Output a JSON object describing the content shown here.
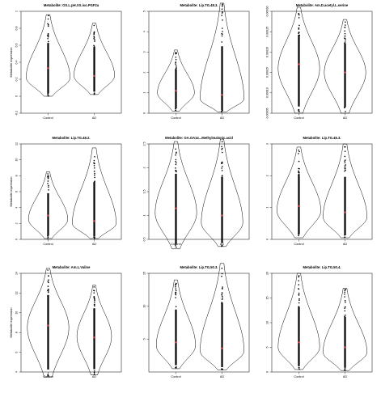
{
  "chart_data": [
    {
      "type": "violin",
      "title": "Metabolite: OS.L.pH.XX.iso.PGF2a",
      "ylabel": "Metabolite expression",
      "categories": [
        "Control",
        "AD"
      ],
      "ylim": [
        -0.2,
        1.0
      ],
      "yticks": [
        -0.2,
        0,
        0.2,
        0.4,
        0.6,
        0.8,
        1.0
      ],
      "summary": [
        {
          "min": 0.0,
          "max": 0.96,
          "mode": 0.22,
          "width": 0.95,
          "mean": 0.33
        },
        {
          "min": 0.02,
          "max": 0.86,
          "mode": 0.24,
          "width": 0.88,
          "mean": 0.24
        }
      ]
    },
    {
      "type": "violin",
      "title": "Metabolite: Lip.TG.48.3.",
      "ylabel": "",
      "categories": [
        "Control",
        "AD"
      ],
      "ylim": [
        0,
        5
      ],
      "yticks": [
        0,
        1,
        2,
        3,
        4,
        5
      ],
      "summary": [
        {
          "min": 0.1,
          "max": 3.1,
          "mode": 1.0,
          "width": 0.8,
          "mean": 1.1
        },
        {
          "min": 0.05,
          "max": 5.4,
          "mode": 0.7,
          "width": 0.95,
          "mean": 0.9
        }
      ]
    },
    {
      "type": "violin",
      "title": "Metabolite: Am.D.acetyl.L.serine",
      "ylabel": "",
      "categories": [
        "Control",
        "AD"
      ],
      "ylim": [
        5e-05,
        0.0003
      ],
      "yticks": [
        5e-05,
        0.0001,
        0.00015,
        0.0002,
        0.00025,
        0.0003
      ],
      "summary": [
        {
          "min": 5e-05,
          "max": 0.00031,
          "mode": 0.00016,
          "width": 0.9,
          "mean": 0.00017
        },
        {
          "min": 5e-05,
          "max": 0.00028,
          "mode": 0.00015,
          "width": 0.9,
          "mean": 0.00015
        }
      ]
    },
    {
      "type": "violin",
      "title": "Metabolite: Lip.TG.48.2.",
      "ylabel": "Metabolite expression",
      "categories": [
        "Control",
        "AD"
      ],
      "ylim": [
        0,
        12
      ],
      "yticks": [
        0,
        2,
        4,
        6,
        8,
        10,
        12
      ],
      "summary": [
        {
          "min": 0.1,
          "max": 8.5,
          "mode": 2.5,
          "width": 0.85,
          "mean": 3.0
        },
        {
          "min": 0.1,
          "max": 11.5,
          "mode": 2.0,
          "width": 0.95,
          "mean": 2.3
        }
      ]
    },
    {
      "type": "violin",
      "title": "Metabolite: OA.OA14...Methylmalonic.acid",
      "ylabel": "",
      "categories": [
        "Control",
        "AD"
      ],
      "ylim": [
        0.5,
        2.5
      ],
      "yticks": [
        0.5,
        1.0,
        1.5,
        2.0,
        2.5
      ],
      "summary": [
        {
          "min": 0.3,
          "max": 2.55,
          "mode": 1.05,
          "width": 0.9,
          "mean": 1.15
        },
        {
          "min": 0.35,
          "max": 2.6,
          "mode": 0.85,
          "width": 0.9,
          "mean": 1.0
        }
      ]
    },
    {
      "type": "violin",
      "title": "Metabolite: Lip.TG.46.3.",
      "ylabel": "",
      "categories": [
        "Control",
        "AD"
      ],
      "ylim": [
        0,
        3
      ],
      "yticks": [
        0,
        1,
        2,
        3
      ],
      "summary": [
        {
          "min": 0.05,
          "max": 2.9,
          "mode": 0.9,
          "width": 0.95,
          "mean": 1.05
        },
        {
          "min": 0.05,
          "max": 3.0,
          "mode": 0.7,
          "width": 0.95,
          "mean": 0.85
        }
      ]
    },
    {
      "type": "violin",
      "title": "Metabolite: Am.L.Valine",
      "ylabel": "Metabolite expression",
      "categories": [
        "Control",
        "AD"
      ],
      "ylim": [
        4,
        14
      ],
      "yticks": [
        4,
        6,
        8,
        10,
        12,
        14
      ],
      "summary": [
        {
          "min": 3.5,
          "max": 14.5,
          "mode": 8.5,
          "width": 0.9,
          "mean": 8.7
        },
        {
          "min": 3.7,
          "max": 12.8,
          "mode": 7.6,
          "width": 0.75,
          "mean": 7.5
        }
      ]
    },
    {
      "type": "violin",
      "title": "Metabolite: Lip.TG.50.3.",
      "ylabel": "",
      "categories": [
        "Control",
        "AD"
      ],
      "ylim": [
        0,
        15
      ],
      "yticks": [
        5,
        10,
        15
      ],
      "summary": [
        {
          "min": 0.5,
          "max": 14.0,
          "mode": 4.0,
          "width": 0.85,
          "mean": 4.5
        },
        {
          "min": 0.3,
          "max": 16.5,
          "mode": 3.2,
          "width": 0.95,
          "mean": 3.6
        }
      ]
    },
    {
      "type": "violin",
      "title": "Metabolite: Lip.TG.50.4.",
      "ylabel": "",
      "categories": [
        "Control",
        "AD"
      ],
      "ylim": [
        0,
        20
      ],
      "yticks": [
        0,
        5,
        10,
        15,
        20
      ],
      "summary": [
        {
          "min": 0.5,
          "max": 20.0,
          "mode": 5.0,
          "width": 0.9,
          "mean": 6.0
        },
        {
          "min": 0.3,
          "max": 17.0,
          "mode": 4.0,
          "width": 0.95,
          "mean": 5.0
        }
      ]
    }
  ],
  "colors": {
    "outline": "#000000",
    "points": "#000000",
    "mean": "#e0202a"
  }
}
